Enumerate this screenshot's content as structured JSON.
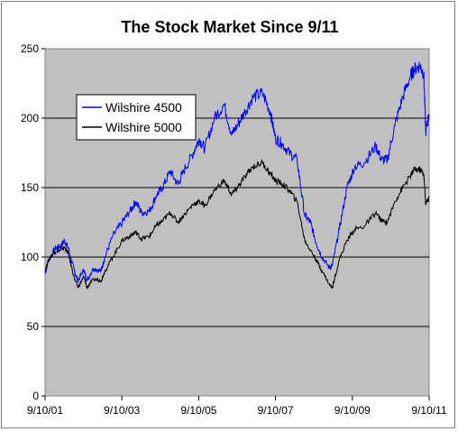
{
  "chart_data": {
    "type": "line",
    "title": "The Stock Market Since 9/11",
    "xlabel": "",
    "ylabel": "",
    "ylim": [
      0,
      250
    ],
    "y_ticks": [
      0,
      50,
      100,
      150,
      200,
      250
    ],
    "x_tick_labels": [
      "9/10/01",
      "9/10/03",
      "9/10/05",
      "9/10/07",
      "9/10/09",
      "9/10/11"
    ],
    "x_ticks_years": [
      2001.69,
      2003.69,
      2005.69,
      2007.69,
      2009.69,
      2011.69
    ],
    "xlim_years": [
      2001.69,
      2011.69
    ],
    "grid": "horizontal",
    "legend_position": "upper-left",
    "plot_background": "#c0c0c0",
    "series": [
      {
        "name": "Wilshire 4500",
        "color": "#0000ff",
        "x": [
          2001.69,
          2001.78,
          2001.95,
          2002.1,
          2002.2,
          2002.3,
          2002.45,
          2002.55,
          2002.7,
          2002.78,
          2002.95,
          2003.15,
          2003.25,
          2003.45,
          2003.7,
          2003.9,
          2004.05,
          2004.2,
          2004.4,
          2004.6,
          2004.75,
          2004.95,
          2005.15,
          2005.3,
          2005.55,
          2005.7,
          2005.85,
          2006.1,
          2006.35,
          2006.55,
          2006.7,
          2006.9,
          2007.1,
          2007.35,
          2007.55,
          2007.69,
          2007.85,
          2008.05,
          2008.25,
          2008.45,
          2008.6,
          2008.75,
          2008.9,
          2009.1,
          2009.17,
          2009.35,
          2009.55,
          2009.75,
          2010.0,
          2010.3,
          2010.45,
          2010.6,
          2010.8,
          2011.0,
          2011.2,
          2011.3,
          2011.45,
          2011.55,
          2011.6,
          2011.69
        ],
        "values": [
          88,
          98,
          106,
          108,
          112,
          106,
          90,
          83,
          91,
          83,
          92,
          90,
          100,
          115,
          125,
          133,
          140,
          132,
          133,
          145,
          150,
          162,
          152,
          162,
          175,
          185,
          178,
          200,
          210,
          188,
          195,
          205,
          215,
          218,
          205,
          185,
          182,
          175,
          170,
          130,
          125,
          110,
          100,
          92,
          94,
          120,
          150,
          165,
          168,
          180,
          170,
          170,
          195,
          215,
          230,
          235,
          238,
          232,
          190,
          203
        ]
      },
      {
        "name": "Wilshire 5000",
        "color": "#000000",
        "x": [
          2001.69,
          2001.78,
          2001.95,
          2002.1,
          2002.2,
          2002.3,
          2002.45,
          2002.55,
          2002.7,
          2002.78,
          2002.95,
          2003.15,
          2003.25,
          2003.45,
          2003.7,
          2003.9,
          2004.05,
          2004.2,
          2004.4,
          2004.6,
          2004.75,
          2004.95,
          2005.15,
          2005.3,
          2005.55,
          2005.7,
          2005.85,
          2006.1,
          2006.35,
          2006.55,
          2006.7,
          2006.9,
          2007.1,
          2007.35,
          2007.55,
          2007.69,
          2007.85,
          2008.05,
          2008.25,
          2008.45,
          2008.6,
          2008.75,
          2008.9,
          2009.1,
          2009.17,
          2009.35,
          2009.55,
          2009.75,
          2010.0,
          2010.3,
          2010.45,
          2010.6,
          2010.8,
          2011.0,
          2011.2,
          2011.3,
          2011.45,
          2011.55,
          2011.6,
          2011.69
        ],
        "values": [
          90,
          98,
          104,
          105,
          107,
          102,
          85,
          78,
          86,
          78,
          84,
          83,
          90,
          100,
          112,
          115,
          118,
          113,
          115,
          123,
          126,
          132,
          125,
          130,
          138,
          140,
          137,
          148,
          155,
          145,
          150,
          158,
          165,
          168,
          160,
          155,
          153,
          148,
          140,
          112,
          105,
          98,
          90,
          80,
          78,
          98,
          112,
          120,
          122,
          132,
          126,
          125,
          140,
          150,
          158,
          163,
          163,
          160,
          138,
          143
        ]
      }
    ]
  }
}
